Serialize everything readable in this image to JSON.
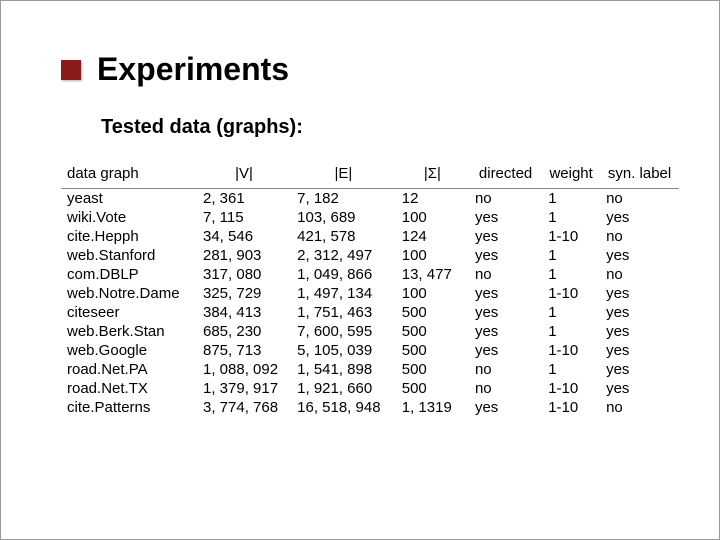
{
  "title": "Experiments",
  "subtitle": "Tested data (graphs):",
  "bullet_color": "#8b1a1a",
  "background_color": "#ffffff",
  "text_color": "#000000",
  "title_fontsize": 32,
  "subtitle_fontsize": 20,
  "body_fontsize": 15,
  "table": {
    "columns": [
      {
        "key": "name",
        "header": "data graph"
      },
      {
        "key": "v",
        "header": "|V|"
      },
      {
        "key": "e",
        "header": "|E|"
      },
      {
        "key": "s",
        "header": "|Σ|"
      },
      {
        "key": "d",
        "header": "directed"
      },
      {
        "key": "w",
        "header": "weight"
      },
      {
        "key": "sl",
        "header": "syn. label"
      }
    ],
    "rows": [
      {
        "name": "yeast",
        "v": "2, 361",
        "e": "7, 182",
        "s": "12",
        "d": "no",
        "w": "1",
        "sl": "no"
      },
      {
        "name": "wiki.Vote",
        "v": "7, 115",
        "e": "103, 689",
        "s": "100",
        "d": "yes",
        "w": "1",
        "sl": "yes"
      },
      {
        "name": "cite.Hepph",
        "v": "34, 546",
        "e": "421, 578",
        "s": "124",
        "d": "yes",
        "w": "1-10",
        "sl": "no"
      },
      {
        "name": "web.Stanford",
        "v": "281, 903",
        "e": "2, 312, 497",
        "s": "100",
        "d": "yes",
        "w": "1",
        "sl": "yes"
      },
      {
        "name": "com.DBLP",
        "v": "317, 080",
        "e": "1, 049, 866",
        "s": "13, 477",
        "d": "no",
        "w": "1",
        "sl": " no"
      },
      {
        "name": "web.Notre.Dame",
        "v": "325, 729",
        "e": "1, 497, 134",
        "s": "100",
        "d": "yes",
        "w": "1-10",
        "sl": "yes"
      },
      {
        "name": "citeseer",
        "v": "384, 413",
        "e": "1, 751, 463",
        "s": "500",
        "d": "yes",
        "w": "1",
        "sl": "yes"
      },
      {
        "name": "web.Berk.Stan",
        "v": "685, 230",
        "e": "7, 600, 595",
        "s": "500",
        "d": "yes",
        "w": "1",
        "sl": "yes"
      },
      {
        "name": "web.Google",
        "v": "875, 713",
        "e": "5, 105, 039",
        "s": "500",
        "d": "yes",
        "w": "1-10",
        "sl": "yes"
      },
      {
        "name": "road.Net.PA",
        "v": "1, 088, 092",
        "e": "1, 541, 898",
        "s": "500",
        "d": "no",
        "w": "1",
        "sl": "yes"
      },
      {
        "name": "road.Net.TX",
        "v": "1, 379, 917",
        "e": "1, 921, 660",
        "s": "500",
        "d": "no",
        "w": "1-10",
        "sl": "yes"
      },
      {
        "name": "cite.Patterns",
        "v": "3, 774, 768",
        "e": "16, 518, 948",
        "s": "1, 1319",
        "d": "yes",
        "w": "1-10",
        "sl": "no"
      }
    ]
  }
}
